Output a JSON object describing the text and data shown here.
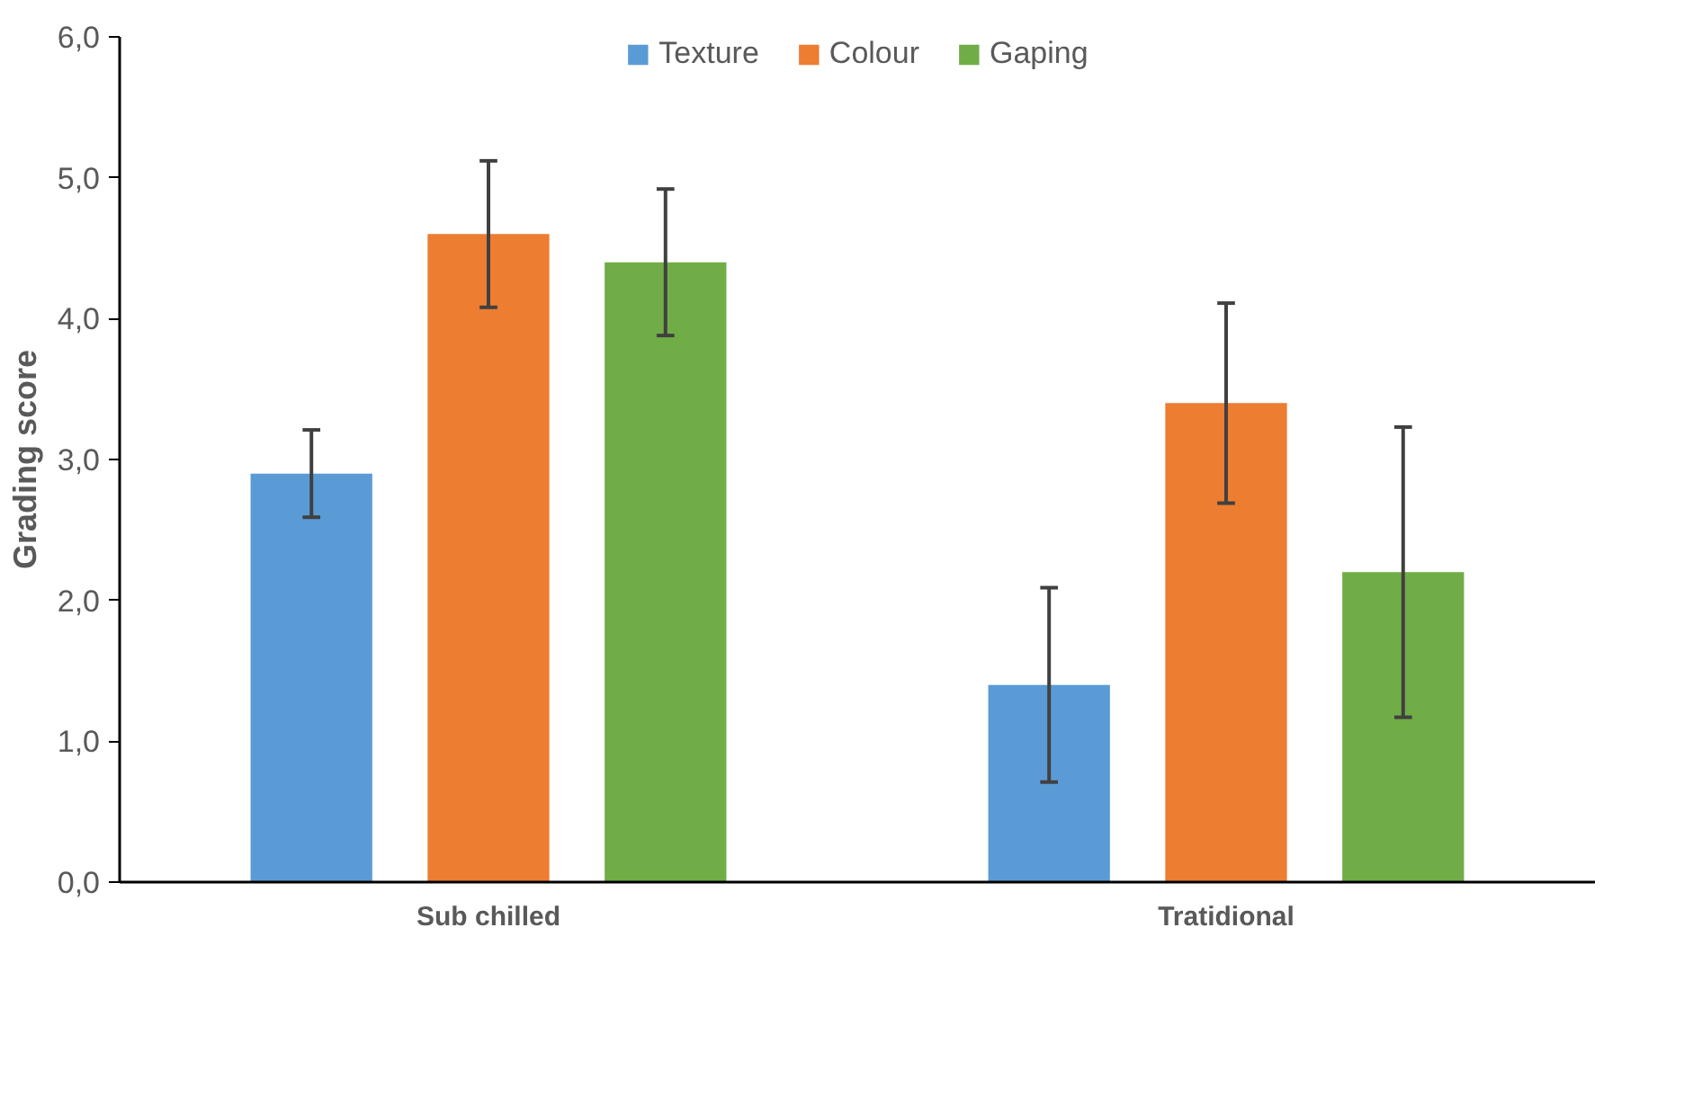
{
  "chart_data": {
    "type": "bar",
    "ylabel": "Grading score",
    "categories": [
      "Sub chilled",
      "Tratidional"
    ],
    "series": [
      {
        "name": "Texture",
        "color": "#5b9bd5",
        "values": [
          2.9,
          1.4
        ],
        "errors": [
          0.31,
          0.69
        ]
      },
      {
        "name": "Colour",
        "color": "#ed7d31",
        "values": [
          4.6,
          3.4
        ],
        "errors": [
          0.52,
          0.71
        ]
      },
      {
        "name": "Gaping",
        "color": "#70ad47",
        "values": [
          4.4,
          2.2
        ],
        "errors": [
          0.52,
          1.03
        ]
      }
    ],
    "ylim": [
      0,
      6
    ],
    "yticks": [
      {
        "value": 0,
        "label": "0,0"
      },
      {
        "value": 1,
        "label": "1,0"
      },
      {
        "value": 2,
        "label": "2,0"
      },
      {
        "value": 3,
        "label": "3,0"
      },
      {
        "value": 4,
        "label": "4,0"
      },
      {
        "value": 5,
        "label": "5,0"
      },
      {
        "value": 6,
        "label": "6,0"
      }
    ],
    "grid": false,
    "legend": "top"
  }
}
